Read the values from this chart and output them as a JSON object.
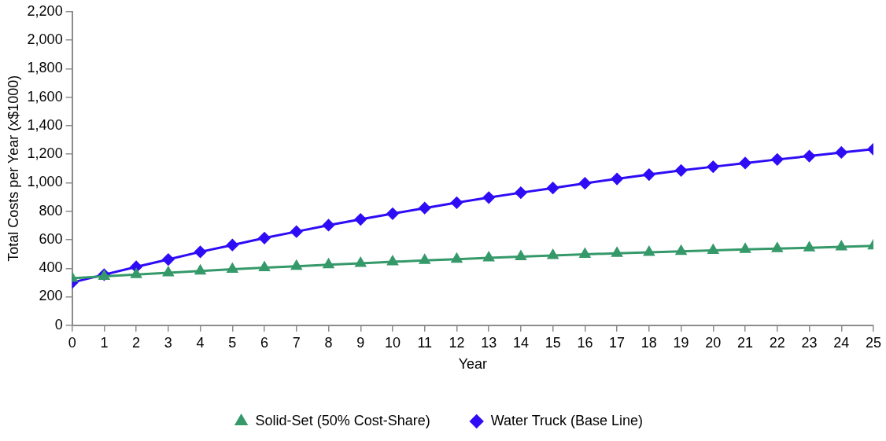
{
  "chart_data": {
    "type": "line",
    "xlabel": "Year",
    "ylabel": "Total Costs per Year (x$1000)",
    "x": [
      0,
      1,
      2,
      3,
      4,
      5,
      6,
      7,
      8,
      9,
      10,
      11,
      12,
      13,
      14,
      15,
      16,
      17,
      18,
      19,
      20,
      21,
      22,
      23,
      24,
      25
    ],
    "xlim": [
      0,
      25
    ],
    "xticks": [
      0,
      1,
      2,
      3,
      4,
      5,
      6,
      7,
      8,
      9,
      10,
      11,
      12,
      13,
      14,
      15,
      16,
      17,
      18,
      19,
      20,
      21,
      22,
      23,
      24,
      25
    ],
    "ylim": [
      0,
      2200
    ],
    "yticks": [
      {
        "value": 0,
        "label": "0"
      },
      {
        "value": 200,
        "label": "200"
      },
      {
        "value": 400,
        "label": "400"
      },
      {
        "value": 600,
        "label": "600"
      },
      {
        "value": 800,
        "label": "800"
      },
      {
        "value": 1000,
        "label": "1,000"
      },
      {
        "value": 1200,
        "label": "1,200"
      },
      {
        "value": 1400,
        "label": "1,400"
      },
      {
        "value": 1600,
        "label": "1,600"
      },
      {
        "value": 1800,
        "label": "1,800"
      },
      {
        "value": 2000,
        "label": "2,000"
      },
      {
        "value": 2200,
        "label": "2,200"
      }
    ],
    "grid": false,
    "legend": "bottom",
    "line_style": "solid",
    "series": [
      {
        "name": "Water Truck (Base Line)",
        "color": "#2e0cf5",
        "marker": "diamond",
        "values": [
          300,
          355,
          410,
          462,
          515,
          563,
          612,
          657,
          702,
          743,
          783,
          822,
          860,
          896,
          930,
          963,
          996,
          1027,
          1057,
          1086,
          1112,
          1138,
          1163,
          1187,
          1212,
          1235
        ]
      },
      {
        "name": "Solid-Set (50% Cost-Share)",
        "color": "#35996a",
        "marker": "triangle",
        "values": [
          330,
          343,
          356,
          368,
          381,
          393,
          404,
          414,
          425,
          435,
          445,
          455,
          464,
          473,
          481,
          490,
          498,
          505,
          512,
          519,
          526,
          532,
          538,
          544,
          550,
          557
        ]
      }
    ]
  }
}
